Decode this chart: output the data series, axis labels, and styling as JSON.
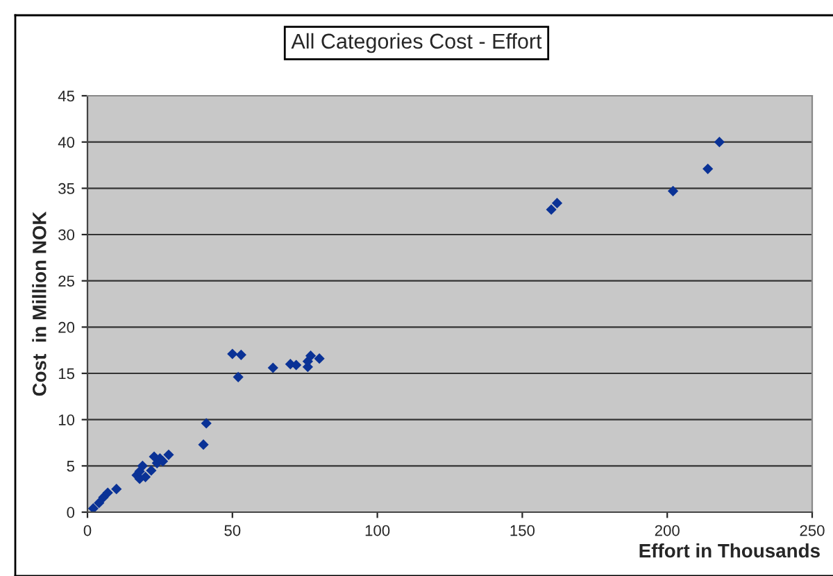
{
  "chart_data": {
    "type": "scatter",
    "title": "All Categories Cost - Effort",
    "xlabel": "Effort in Thousands",
    "ylabel": "Cost  in Million NOK",
    "x": [
      2,
      4,
      5.5,
      7,
      10,
      17,
      18,
      18,
      19,
      20,
      22,
      23,
      24,
      25,
      26,
      28,
      40,
      41,
      50,
      52,
      53,
      64,
      70,
      72,
      76,
      76,
      77,
      80,
      160,
      162,
      202,
      214,
      218
    ],
    "series": [
      {
        "color": "#0a3296",
        "values": [
          0.4,
          1,
          1.6,
          2.1,
          2.5,
          4,
          3.6,
          4.4,
          5,
          3.8,
          4.5,
          6,
          5.3,
          5.8,
          5.5,
          6.2,
          7.3,
          9.6,
          17.1,
          14.6,
          17,
          15.6,
          16,
          15.9,
          15.7,
          16.3,
          16.9,
          16.6,
          32.7,
          33.4,
          34.7,
          37.1,
          40
        ]
      }
    ],
    "xlim": [
      0,
      250
    ],
    "xticks": [
      0,
      50,
      100,
      150,
      200,
      250
    ],
    "ylim": [
      0,
      45
    ],
    "yticks": [
      0,
      5,
      10,
      15,
      20,
      25,
      30,
      35,
      40,
      45
    ],
    "grid": "y",
    "marker": "diamond",
    "legend": false
  }
}
